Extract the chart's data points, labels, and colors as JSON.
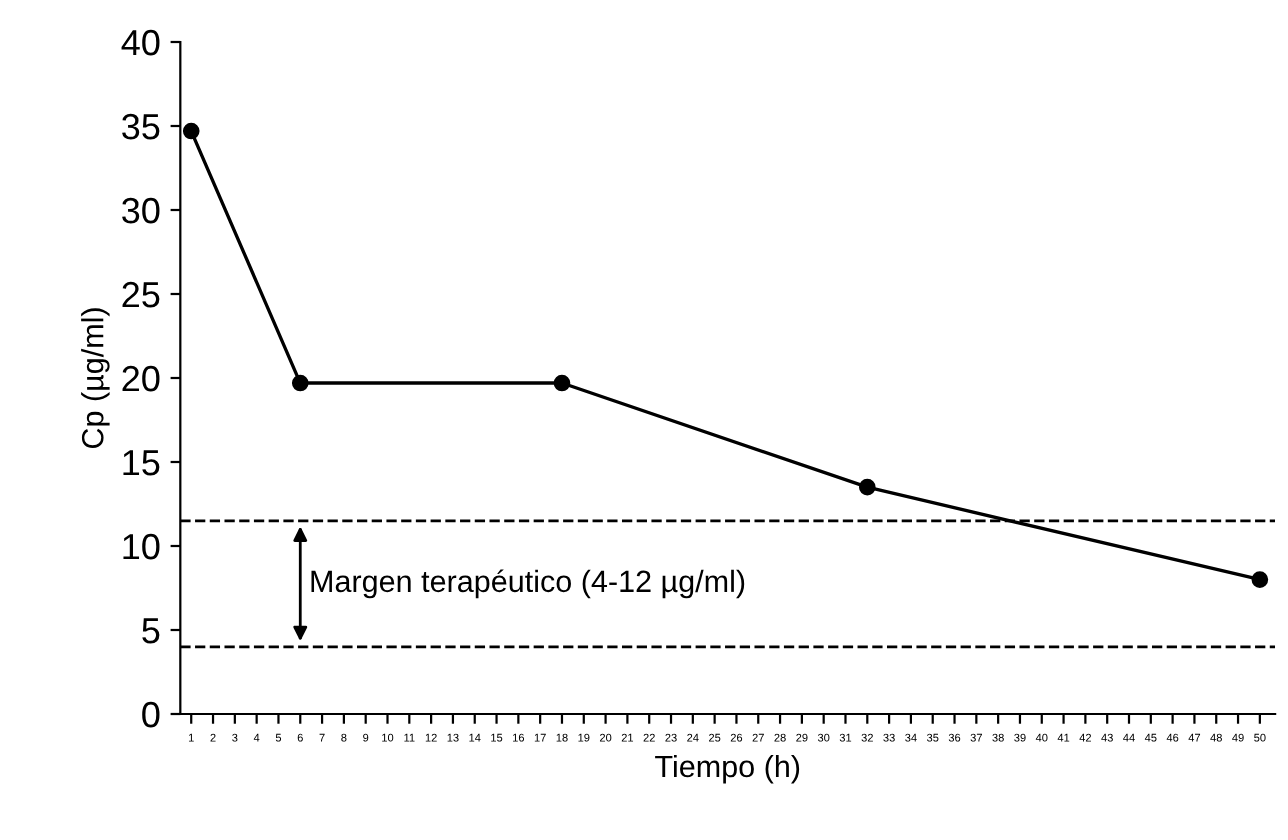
{
  "chart_data": {
    "type": "line",
    "xlabel": "Tiempo (h)",
    "ylabel": "Cp (µg/ml)",
    "x": [
      1,
      6,
      18,
      32,
      50
    ],
    "series": [
      {
        "color": "#000000",
        "values": [
          34.7,
          19.7,
          19.7,
          13.5,
          8
        ]
      }
    ],
    "xlim": [
      0.5,
      50.7
    ],
    "xticks": [
      1,
      2,
      3,
      4,
      5,
      6,
      7,
      8,
      9,
      10,
      11,
      12,
      13,
      14,
      15,
      16,
      17,
      18,
      19,
      20,
      21,
      22,
      23,
      24,
      25,
      26,
      27,
      28,
      29,
      30,
      31,
      32,
      33,
      34,
      35,
      36,
      37,
      38,
      39,
      40,
      41,
      42,
      43,
      44,
      45,
      46,
      47,
      48,
      49,
      50
    ],
    "ylim": [
      0,
      40
    ],
    "yticks": [
      0,
      5,
      10,
      15,
      20,
      25,
      30,
      35,
      40
    ],
    "ref_lines": [
      {
        "axis": "y",
        "value": 11.5,
        "color": "#000000",
        "line_style": "dashed"
      },
      {
        "axis": "y",
        "value": 4,
        "color": "#000000",
        "line_style": "dashed"
      }
    ],
    "annotations": [
      "Margen terapéutico (4-12 µg/ml)"
    ],
    "marker": "circle",
    "line_style": "solid",
    "grid": false,
    "legend": false
  }
}
